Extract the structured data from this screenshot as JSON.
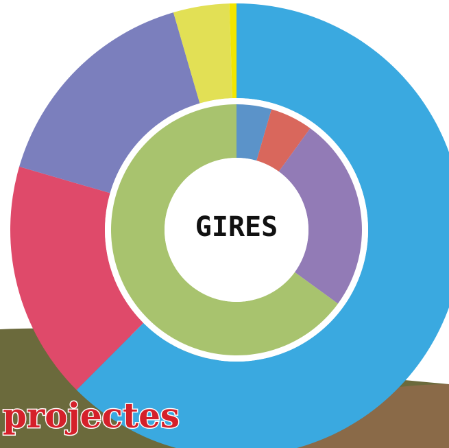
{
  "chart_data": {
    "type": "donut",
    "center_label": "GIRES",
    "annotation": "projectes",
    "rings": [
      {
        "values": [
          62.5,
          17,
          16,
          4,
          0.5
        ],
        "colors": [
          "#3aa9e0",
          "#df4a6a",
          "#7b7fbd",
          "#e2e055",
          "#f2e600"
        ]
      },
      {
        "values": [
          4.5,
          5.5,
          25,
          65
        ],
        "colors": [
          "#5b93c9",
          "#d9675c",
          "#927bb6",
          "#a8c36e"
        ]
      }
    ]
  }
}
